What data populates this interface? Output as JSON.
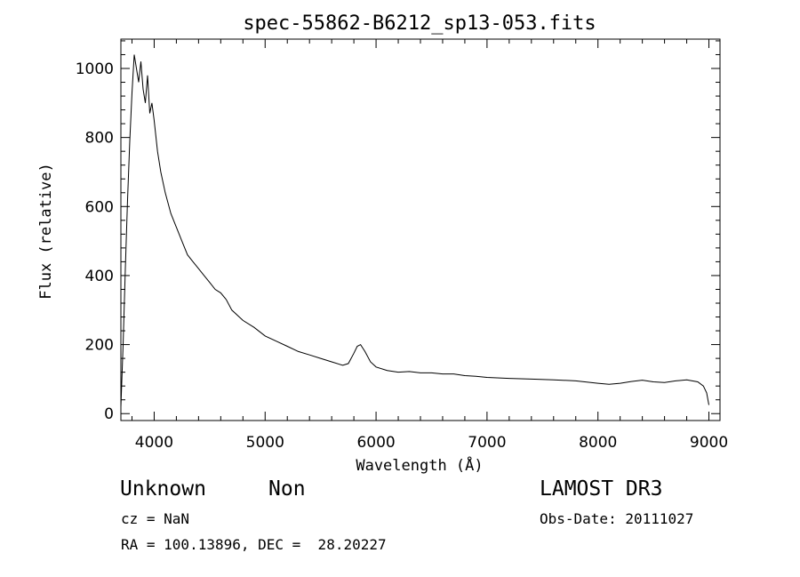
{
  "chart_data": {
    "type": "line",
    "title": "spec-55862-B6212_sp13-053.fits",
    "xlabel": "Wavelength (Å)",
    "ylabel": "Flux (relative)",
    "xlim": [
      3700,
      9100
    ],
    "ylim": [
      -20,
      1085
    ],
    "xticks": [
      4000,
      5000,
      6000,
      7000,
      8000,
      9000
    ],
    "yticks": [
      0,
      200,
      400,
      600,
      800,
      1000
    ],
    "grid": false,
    "series": [
      {
        "x": [
          3700,
          3720,
          3740,
          3760,
          3780,
          3800,
          3820,
          3840,
          3860,
          3880,
          3900,
          3920,
          3940,
          3960,
          3980,
          4000,
          4030,
          4060,
          4100,
          4150,
          4200,
          4250,
          4300,
          4350,
          4400,
          4450,
          4500,
          4550,
          4600,
          4650,
          4700,
          4800,
          4900,
          5000,
          5100,
          5200,
          5300,
          5400,
          5500,
          5600,
          5700,
          5750,
          5800,
          5830,
          5860,
          5900,
          5950,
          6000,
          6100,
          6200,
          6300,
          6400,
          6500,
          6600,
          6700,
          6800,
          6900,
          7000,
          7200,
          7400,
          7600,
          7800,
          8000,
          8100,
          8200,
          8300,
          8400,
          8500,
          8600,
          8700,
          8800,
          8900,
          8950,
          8980,
          9000
        ],
        "y": [
          20,
          200,
          420,
          620,
          790,
          930,
          1040,
          1000,
          960,
          1020,
          940,
          900,
          980,
          870,
          900,
          850,
          760,
          700,
          640,
          580,
          540,
          500,
          460,
          440,
          420,
          400,
          380,
          360,
          350,
          330,
          300,
          270,
          250,
          225,
          210,
          195,
          180,
          170,
          160,
          150,
          140,
          145,
          175,
          195,
          200,
          180,
          150,
          135,
          125,
          120,
          122,
          118,
          118,
          115,
          115,
          110,
          108,
          105,
          102,
          100,
          98,
          95,
          88,
          85,
          88,
          93,
          97,
          92,
          90,
          95,
          98,
          92,
          80,
          60,
          25
        ]
      }
    ]
  },
  "footer": {
    "object_class": "Unknown",
    "object_subclass": "Non",
    "redshift": "cz = NaN",
    "coords": "RA = 100.13896, DEC =  28.20227",
    "survey": "LAMOST DR3",
    "obs_date": "Obs-Date: 20111027"
  }
}
